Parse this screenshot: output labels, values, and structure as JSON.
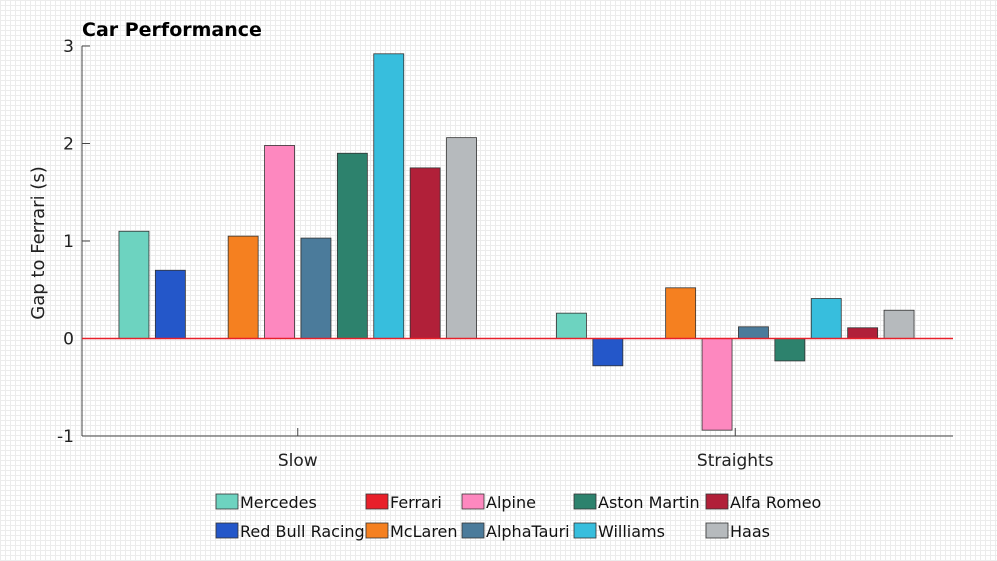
{
  "chart_data": {
    "type": "bar",
    "title": "Car Performance",
    "xlabel": "",
    "ylabel": "Gap to Ferrari (s)",
    "ylim": [
      -1,
      3
    ],
    "yticks": [
      -1,
      0,
      1,
      2,
      3
    ],
    "categories": [
      "Slow",
      "Straights"
    ],
    "series": [
      {
        "name": "Mercedes",
        "color": "#6dd3c0",
        "values": [
          1.1,
          0.26
        ]
      },
      {
        "name": "Red Bull Racing",
        "color": "#2457c9",
        "values": [
          0.7,
          -0.28
        ]
      },
      {
        "name": "Ferrari",
        "color": "#e8202a",
        "values": [
          0.0,
          0.0
        ]
      },
      {
        "name": "McLaren",
        "color": "#f58020",
        "values": [
          1.05,
          0.52
        ]
      },
      {
        "name": "Alpine",
        "color": "#fd88bf",
        "values": [
          1.98,
          -0.94
        ]
      },
      {
        "name": "AlphaTauri",
        "color": "#4b7b9b",
        "values": [
          1.03,
          0.12
        ]
      },
      {
        "name": "Aston Martin",
        "color": "#2d826d",
        "values": [
          1.9,
          -0.23
        ]
      },
      {
        "name": "Williams",
        "color": "#37bedd",
        "values": [
          2.92,
          0.41
        ]
      },
      {
        "name": "Alfa Romeo",
        "color": "#b12039",
        "values": [
          1.75,
          0.11
        ]
      },
      {
        "name": "Haas",
        "color": "#b6babd",
        "values": [
          2.06,
          0.29
        ]
      }
    ],
    "legend": {
      "position": "bottom",
      "rows": [
        [
          "Mercedes",
          "Ferrari",
          "Alpine",
          "Aston Martin",
          "Alfa Romeo"
        ],
        [
          "Red Bull Racing",
          "McLaren",
          "AlphaTauri",
          "Williams",
          "Haas"
        ]
      ]
    },
    "zero_line_color": "#e8202a",
    "grid": false
  }
}
